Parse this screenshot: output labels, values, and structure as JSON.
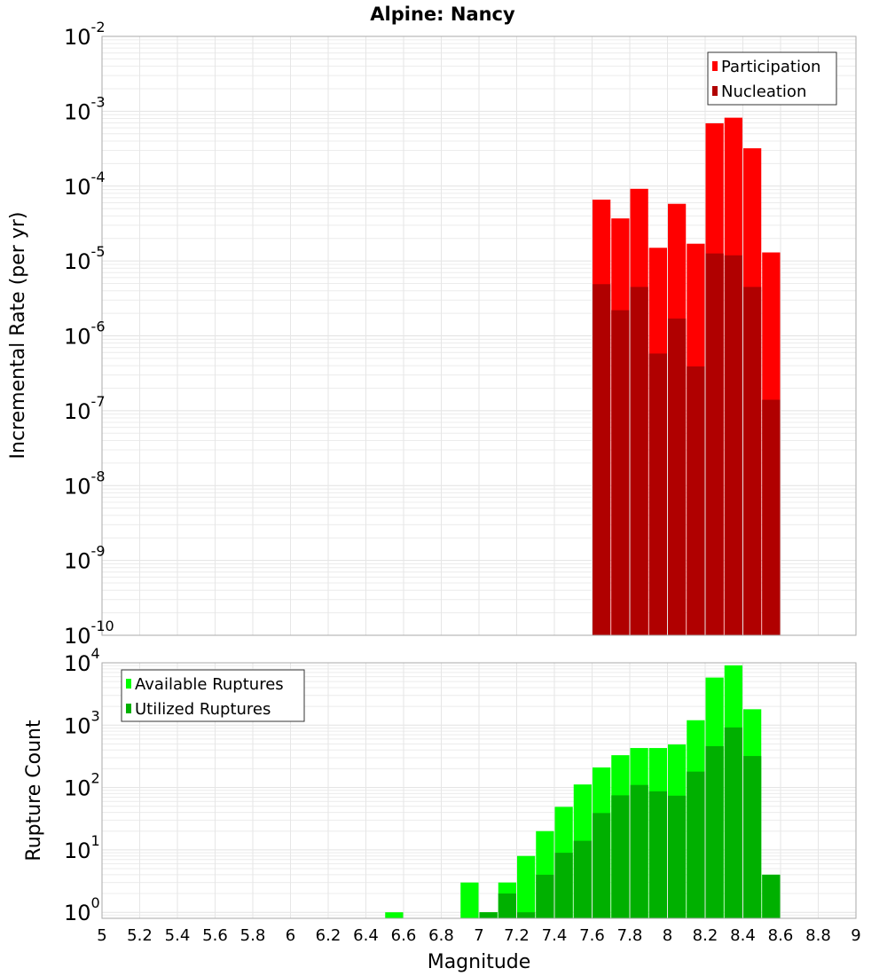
{
  "chart_data": [
    {
      "type": "bar",
      "title": "Alpine: Nancy",
      "xlabel": "Magnitude",
      "ylabel": "Incremental Rate (per yr)",
      "yscale": "log",
      "xlim": [
        5,
        9
      ],
      "ylim": [
        1e-10,
        0.01
      ],
      "y_tick_exponents": [
        -10,
        -9,
        -8,
        -7,
        -6,
        -5,
        -4,
        -3,
        -2
      ],
      "grid": true,
      "legend_position": "top-right",
      "bin_width": 0.1,
      "x": [
        7.65,
        7.75,
        7.85,
        7.95,
        8.05,
        8.15,
        8.25,
        8.35,
        8.45,
        8.55
      ],
      "series": [
        {
          "name": "Participation",
          "color": "#ff0000",
          "values": [
            6.6e-05,
            3.7e-05,
            9.2e-05,
            1.5e-05,
            5.8e-05,
            1.7e-05,
            0.00069,
            0.00082,
            0.00032,
            1.3e-05
          ]
        },
        {
          "name": "Nucleation",
          "color": "#b00000",
          "values": [
            4.9e-06,
            2.2e-06,
            4.5e-06,
            5.8e-07,
            1.7e-06,
            3.9e-07,
            1.26e-05,
            1.19e-05,
            4.5e-06,
            1.4e-07
          ]
        }
      ]
    },
    {
      "type": "bar",
      "xlabel": "Magnitude",
      "ylabel": "Rupture Count",
      "yscale": "log",
      "xlim": [
        5,
        9
      ],
      "ylim": [
        0.8,
        10000
      ],
      "y_tick_exponents": [
        0,
        1,
        2,
        3,
        4
      ],
      "x_ticks": [
        "5",
        "5.2",
        "5.4",
        "5.6",
        "5.8",
        "6",
        "6.2",
        "6.4",
        "6.6",
        "6.8",
        "7",
        "7.2",
        "7.4",
        "7.6",
        "7.8",
        "8",
        "8.2",
        "8.4",
        "8.6",
        "8.8",
        "9"
      ],
      "grid": true,
      "legend_position": "top-left",
      "bin_width": 0.1,
      "x": [
        6.55,
        6.65,
        6.75,
        6.85,
        6.95,
        7.05,
        7.15,
        7.25,
        7.35,
        7.45,
        7.55,
        7.65,
        7.75,
        7.85,
        7.95,
        8.05,
        8.15,
        8.25,
        8.35,
        8.45,
        8.55
      ],
      "series": [
        {
          "name": "Available Ruptures",
          "color": "#00ff00",
          "values": [
            1,
            0,
            0,
            0,
            3,
            1,
            3,
            8,
            20,
            49,
            112,
            210,
            330,
            430,
            430,
            490,
            1200,
            5800,
            9100,
            1800,
            4
          ]
        },
        {
          "name": "Utilized Ruptures",
          "color": "#00b000",
          "values": [
            0,
            0,
            0,
            0,
            0,
            1,
            2,
            1,
            4,
            9,
            14,
            39,
            75,
            110,
            87,
            74,
            180,
            460,
            920,
            320,
            4
          ]
        }
      ]
    }
  ]
}
